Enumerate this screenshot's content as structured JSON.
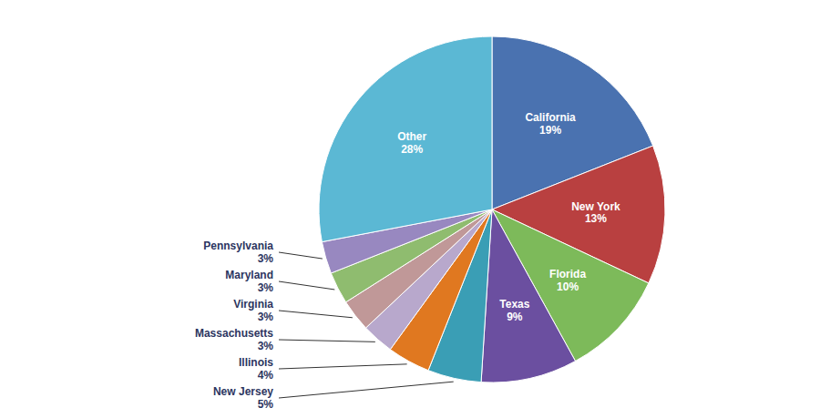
{
  "chart_data": {
    "type": "pie",
    "categories": [
      "California",
      "New York",
      "Florida",
      "Texas",
      "New Jersey",
      "Illinois",
      "Massachusetts",
      "Virginia",
      "Maryland",
      "Pennsylvania",
      "Other"
    ],
    "values": [
      19,
      13,
      10,
      9,
      5,
      4,
      3,
      3,
      3,
      3,
      28
    ],
    "value_labels": [
      "19%",
      "13%",
      "10%",
      "9%",
      "5%",
      "4%",
      "3%",
      "3%",
      "3%",
      "3%",
      "28%"
    ],
    "colors": [
      "#4a72b0",
      "#b94040",
      "#7dba5a",
      "#6b4fa0",
      "#3a9eb5",
      "#e07820",
      "#b8a8cc",
      "#c09898",
      "#8fbc6f",
      "#9888c0",
      "#5bb8d4"
    ],
    "data_labels": true
  }
}
